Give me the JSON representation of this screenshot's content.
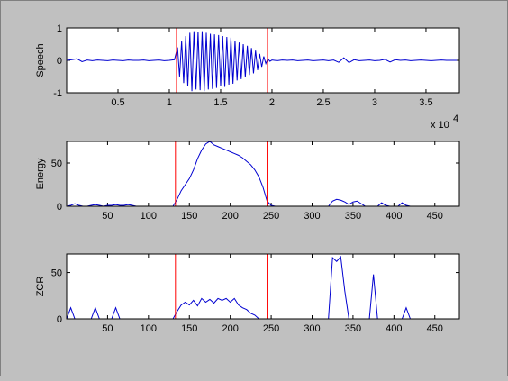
{
  "chart_data": [
    {
      "type": "line",
      "ylabel": "Speech",
      "color": "#0000d0",
      "vline_color": "#ff0000",
      "xlim": [
        0,
        38250
      ],
      "ylim": [
        -1,
        1
      ],
      "yticks": [
        -1,
        0,
        1
      ],
      "xticks": [
        {
          "value": 5000,
          "label": "0.5"
        },
        {
          "value": 10000,
          "label": "1"
        },
        {
          "value": 15000,
          "label": "1.5"
        },
        {
          "value": 20000,
          "label": "2"
        },
        {
          "value": 25000,
          "label": "2.5"
        },
        {
          "value": 30000,
          "label": "3"
        },
        {
          "value": 35000,
          "label": "3.5"
        }
      ],
      "x_exponent_base": "x 10",
      "x_exponent": "4",
      "vlines": [
        10700,
        19560
      ],
      "x": [
        0,
        500,
        1000,
        1500,
        2000,
        2500,
        3000,
        3500,
        4000,
        4500,
        5000,
        5500,
        6000,
        6500,
        7000,
        7500,
        8000,
        8500,
        9000,
        9500,
        10000,
        10500,
        10800,
        11000,
        11200,
        11400,
        11600,
        11800,
        12000,
        12200,
        12400,
        12600,
        12800,
        13000,
        13200,
        13400,
        13600,
        13800,
        14000,
        14200,
        14400,
        14600,
        14800,
        15000,
        15200,
        15400,
        15600,
        15800,
        16000,
        16200,
        16400,
        16600,
        16800,
        17000,
        17200,
        17400,
        17600,
        17800,
        18000,
        18200,
        18400,
        18600,
        18800,
        19000,
        19200,
        19400,
        19600,
        19800,
        20000,
        20500,
        21000,
        21500,
        22000,
        22500,
        23000,
        23500,
        24000,
        24500,
        25000,
        25500,
        26000,
        26500,
        27000,
        27500,
        28000,
        28500,
        29000,
        29500,
        30000,
        30500,
        31000,
        31500,
        32000,
        32500,
        33000,
        33500,
        34000,
        34500,
        35000,
        35500,
        36000,
        36500,
        37000,
        37500,
        38000
      ],
      "values": [
        0,
        0.02,
        0.05,
        -0.04,
        0.01,
        -0.01,
        0.01,
        0,
        -0.01,
        0.01,
        0,
        -0.01,
        0.01,
        0,
        0,
        0.01,
        -0.01,
        0,
        0.01,
        -0.01,
        0,
        0.02,
        0.4,
        -0.5,
        0.6,
        -0.7,
        0.75,
        -0.8,
        0.85,
        -0.95,
        0.9,
        -0.9,
        0.88,
        -0.92,
        0.9,
        -0.95,
        0.85,
        -0.9,
        0.82,
        -0.88,
        0.8,
        -0.85,
        0.78,
        -0.8,
        0.75,
        -0.82,
        0.72,
        -0.75,
        0.7,
        -0.72,
        0.6,
        -0.62,
        0.55,
        -0.58,
        0.5,
        -0.52,
        0.45,
        -0.45,
        0.38,
        -0.4,
        0.3,
        -0.3,
        0.2,
        -0.2,
        0.12,
        -0.1,
        0.05,
        -0.03,
        0.01,
        -0.01,
        0.01,
        0,
        0.01,
        -0.01,
        0,
        0.01,
        -0.01,
        0,
        0.01,
        -0.01,
        0.01,
        -0.06,
        0.08,
        -0.07,
        0.02,
        -0.01,
        0,
        0.01,
        -0.01,
        0,
        0.03,
        -0.05,
        0.02,
        0,
        0.01,
        -0.01,
        0,
        0.01,
        0,
        -0.01,
        0,
        0.01,
        0,
        0,
        0
      ]
    },
    {
      "type": "line",
      "ylabel": "Energy",
      "color": "#0000d0",
      "vline_color": "#ff0000",
      "xlim": [
        0,
        480
      ],
      "ylim": [
        0,
        75
      ],
      "yticks": [
        0,
        50
      ],
      "xticks": [
        50,
        100,
        150,
        200,
        250,
        300,
        350,
        400,
        450
      ],
      "vlines": [
        133,
        245
      ],
      "x": [
        0,
        5,
        10,
        15,
        20,
        25,
        30,
        35,
        40,
        45,
        50,
        55,
        60,
        65,
        70,
        75,
        80,
        85,
        90,
        95,
        100,
        105,
        110,
        115,
        120,
        125,
        130,
        135,
        140,
        145,
        150,
        155,
        160,
        165,
        170,
        175,
        180,
        185,
        190,
        195,
        200,
        205,
        210,
        215,
        220,
        225,
        230,
        235,
        240,
        245,
        250,
        255,
        260,
        265,
        270,
        275,
        280,
        285,
        290,
        295,
        300,
        305,
        310,
        315,
        320,
        325,
        330,
        335,
        340,
        345,
        350,
        355,
        360,
        365,
        370,
        375,
        380,
        385,
        390,
        395,
        400,
        405,
        410,
        415,
        420,
        425,
        430,
        435,
        440,
        445,
        450,
        455,
        460,
        465,
        470,
        475,
        480
      ],
      "values": [
        0,
        1,
        3,
        1,
        0,
        0,
        1,
        2,
        1,
        0,
        1,
        1,
        2,
        1,
        1,
        2,
        1,
        0,
        0,
        0,
        0,
        0,
        0,
        0,
        0,
        0,
        0,
        8,
        18,
        25,
        32,
        42,
        55,
        65,
        72,
        75,
        71,
        69,
        67,
        65,
        63,
        61,
        59,
        56,
        52,
        48,
        42,
        34,
        22,
        6,
        1,
        0,
        0,
        0,
        0,
        0,
        0,
        0,
        0,
        0,
        0,
        0,
        0,
        0,
        0,
        6,
        8,
        7,
        5,
        2,
        5,
        6,
        3,
        0,
        0,
        0,
        0,
        4,
        1,
        0,
        0,
        0,
        4,
        1,
        0,
        0,
        0,
        0,
        0,
        0,
        0,
        0,
        0,
        0,
        0,
        0,
        0
      ]
    },
    {
      "type": "line",
      "ylabel": "ZCR",
      "color": "#0000d0",
      "vline_color": "#ff0000",
      "xlim": [
        0,
        480
      ],
      "ylim": [
        0,
        70
      ],
      "yticks": [
        0,
        50
      ],
      "xticks": [
        50,
        100,
        150,
        200,
        250,
        300,
        350,
        400,
        450
      ],
      "vlines": [
        133,
        245
      ],
      "x": [
        0,
        5,
        10,
        15,
        20,
        25,
        30,
        35,
        40,
        45,
        50,
        55,
        60,
        65,
        70,
        75,
        80,
        85,
        90,
        95,
        100,
        105,
        110,
        115,
        120,
        125,
        130,
        135,
        140,
        145,
        150,
        155,
        160,
        165,
        170,
        175,
        180,
        185,
        190,
        195,
        200,
        205,
        210,
        215,
        220,
        225,
        230,
        235,
        240,
        245,
        250,
        255,
        260,
        265,
        270,
        275,
        280,
        285,
        290,
        295,
        300,
        305,
        310,
        315,
        320,
        325,
        330,
        335,
        340,
        345,
        350,
        355,
        360,
        365,
        370,
        375,
        380,
        385,
        390,
        395,
        400,
        405,
        410,
        415,
        420,
        425,
        430,
        435,
        440,
        445,
        450,
        455,
        460,
        465,
        470,
        475,
        480
      ],
      "values": [
        0,
        12,
        0,
        0,
        0,
        0,
        0,
        12,
        0,
        0,
        0,
        0,
        12,
        0,
        0,
        0,
        0,
        0,
        0,
        0,
        0,
        0,
        0,
        0,
        0,
        0,
        0,
        8,
        15,
        18,
        15,
        20,
        14,
        22,
        18,
        21,
        17,
        22,
        20,
        22,
        18,
        22,
        15,
        12,
        10,
        6,
        4,
        0,
        0,
        0,
        0,
        0,
        0,
        0,
        0,
        0,
        0,
        0,
        0,
        0,
        0,
        0,
        0,
        0,
        0,
        66,
        62,
        67,
        30,
        0,
        0,
        0,
        0,
        0,
        0,
        48,
        0,
        0,
        0,
        0,
        0,
        0,
        0,
        12,
        0,
        0,
        0,
        0,
        0,
        0,
        0,
        0,
        0,
        0,
        0,
        0,
        0
      ]
    }
  ]
}
